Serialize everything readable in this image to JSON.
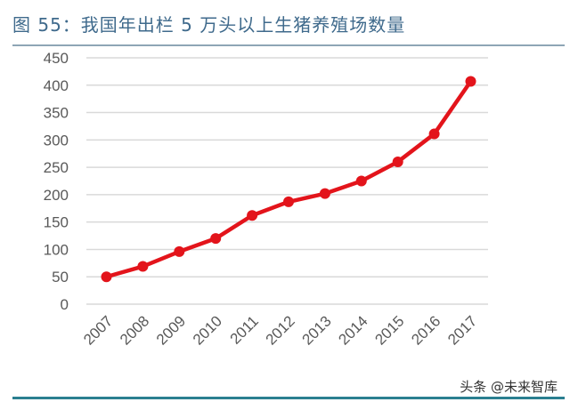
{
  "chart_data": {
    "type": "line",
    "title": "图 55：我国年出栏 5 万头以上生猪养殖场数量",
    "xlabel": "",
    "ylabel": "",
    "categories": [
      "2007",
      "2008",
      "2009",
      "2010",
      "2011",
      "2012",
      "2013",
      "2014",
      "2015",
      "2016",
      "2017"
    ],
    "series": [
      {
        "values": [
          50,
          69,
          96,
          120,
          162,
          187,
          202,
          225,
          260,
          311,
          407
        ],
        "color": "#e3141b"
      }
    ],
    "ylim": [
      0,
      450
    ],
    "yticks": [
      "0",
      "50",
      "100",
      "150",
      "200",
      "250",
      "300",
      "350",
      "400",
      "450"
    ],
    "grid": true,
    "legend": "none"
  },
  "watermark": "头条 @未来智库"
}
